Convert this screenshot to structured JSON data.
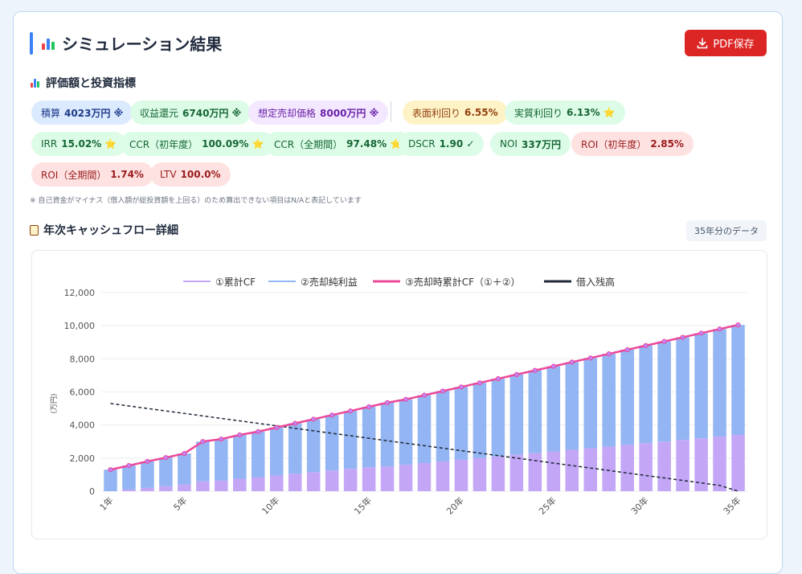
{
  "header": {
    "title": "シミュレーション結果",
    "pdf_label": "PDF保存"
  },
  "metrics_section": {
    "title": "評価額と投資指標",
    "row1": [
      {
        "label": "積算",
        "value": "4023万円 ※",
        "color": "blue"
      },
      {
        "label": "収益還元",
        "value": "6740万円 ※",
        "color": "green"
      },
      {
        "label": "想定売却価格",
        "value": "8000万円 ※",
        "color": "purple"
      },
      {
        "label": "表面利回り",
        "value": "6.55%",
        "color": "yellow"
      },
      {
        "label": "実質利回り",
        "value": "6.13% ⭐",
        "color": "green"
      }
    ],
    "row2": [
      {
        "label": "IRR",
        "value": "15.02% ⭐",
        "color": "green"
      },
      {
        "label": "CCR（初年度）",
        "value": "100.09% ⭐",
        "color": "green"
      },
      {
        "label": "CCR（全期間）",
        "value": "97.48% ⭐",
        "color": "green"
      },
      {
        "label": "DSCR",
        "value": "1.90 ✓",
        "color": "green"
      },
      {
        "label": "NOI",
        "value": "337万円",
        "color": "green"
      },
      {
        "label": "ROI（初年度）",
        "value": "2.85%",
        "color": "red"
      }
    ],
    "row3": [
      {
        "label": "ROI（全期間）",
        "value": "1.74%",
        "color": "red"
      },
      {
        "label": "LTV",
        "value": "100.0%",
        "color": "red"
      }
    ],
    "note": "※ 自己資金がマイナス（借入額が総投資額を上回る）のため算出できない項目はN/Aと表記しています"
  },
  "cashflow_section": {
    "title": "年次キャッシュフロー詳細",
    "badge": "35年分のデータ"
  },
  "colors": {
    "cumulative_cf": "#c4a6f7",
    "sale_net_profit": "#93b5f3",
    "sale_cumulative": "#ec4899",
    "loan_balance": "#1f2937"
  },
  "chart_data": {
    "type": "bar",
    "ylabel": "(万円)",
    "ylim": [
      0,
      12000
    ],
    "yticks": [
      "0",
      "2,000",
      "4,000",
      "6,000",
      "8,000",
      "10,000",
      "12,000"
    ],
    "x": [
      "1年",
      "2年",
      "3年",
      "4年",
      "5年",
      "6年",
      "7年",
      "8年",
      "9年",
      "10年",
      "11年",
      "12年",
      "13年",
      "14年",
      "15年",
      "16年",
      "17年",
      "18年",
      "19年",
      "20年",
      "21年",
      "22年",
      "23年",
      "24年",
      "25年",
      "26年",
      "27年",
      "28年",
      "29年",
      "30年",
      "31年",
      "32年",
      "33年",
      "34年",
      "35年"
    ],
    "xtick_labels": [
      "1年",
      "5年",
      "10年",
      "15年",
      "20年",
      "25年",
      "30年",
      "35年"
    ],
    "legend": [
      "①累計CF",
      "②売却純利益",
      "③売却時累計CF（①＋②）",
      "借入残高"
    ],
    "series": [
      {
        "name": "①累計CF",
        "kind": "stacked-bar",
        "values": [
          0,
          100,
          200,
          300,
          400,
          600,
          650,
          750,
          850,
          950,
          1050,
          1150,
          1250,
          1350,
          1450,
          1500,
          1600,
          1700,
          1800,
          1900,
          2000,
          2100,
          2200,
          2300,
          2400,
          2500,
          2600,
          2700,
          2800,
          2900,
          3000,
          3100,
          3200,
          3300,
          3400
        ]
      },
      {
        "name": "②売却純利益",
        "kind": "stacked-bar",
        "values": [
          1300,
          1450,
          1600,
          1730,
          1880,
          2400,
          2500,
          2650,
          2750,
          2900,
          3050,
          3200,
          3350,
          3500,
          3650,
          3850,
          3950,
          4100,
          4250,
          4400,
          4550,
          4700,
          4850,
          5000,
          5150,
          5300,
          5450,
          5600,
          5750,
          5900,
          6050,
          6200,
          6350,
          6500,
          6650
        ]
      },
      {
        "name": "③売却時累計CF（①＋②）",
        "kind": "line",
        "values": [
          1300,
          1550,
          1800,
          2030,
          2280,
          3000,
          3150,
          3400,
          3600,
          3850,
          4100,
          4350,
          4600,
          4850,
          5100,
          5350,
          5550,
          5800,
          6050,
          6300,
          6550,
          6800,
          7050,
          7300,
          7550,
          7800,
          8050,
          8300,
          8550,
          8800,
          9050,
          9300,
          9550,
          9800,
          10050
        ]
      },
      {
        "name": "借入残高",
        "kind": "dashed-line",
        "values": [
          5300,
          5150,
          5000,
          4850,
          4700,
          4550,
          4400,
          4250,
          4100,
          3950,
          3800,
          3650,
          3500,
          3350,
          3200,
          3050,
          2900,
          2750,
          2600,
          2450,
          2300,
          2150,
          2000,
          1850,
          1700,
          1550,
          1400,
          1250,
          1100,
          950,
          800,
          650,
          500,
          350,
          0
        ]
      }
    ]
  }
}
